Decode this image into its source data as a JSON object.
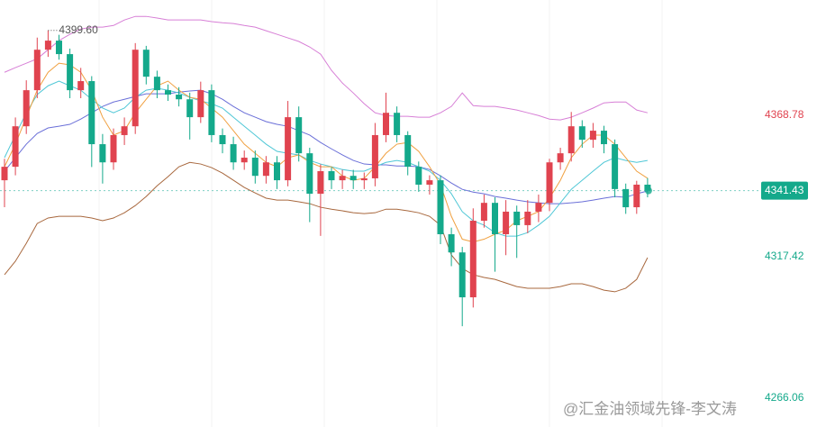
{
  "chart_data": {
    "type": "candlestick",
    "ylim": [
      4255.61,
      4410.65
    ],
    "yticks": [
      4368.78,
      4317.42,
      4266.06
    ],
    "up_color": "#e0434f",
    "down_color": "#14a98b",
    "last_price": 4341.43,
    "max_annotation": {
      "value": 4399.6,
      "label": "4399.60"
    },
    "watermark": "@汇金油领域先锋-李文涛",
    "open": [
      4345.2,
      4350.1,
      4364.8,
      4377.9,
      4392.6,
      4395.9,
      4391.0,
      4377.9,
      4381.2,
      4358.3,
      4351.7,
      4361.6,
      4364.8,
      4392.6,
      4382.8,
      4377.9,
      4376.3,
      4374.6,
      4368.1,
      4377.9,
      4361.6,
      4358.3,
      4351.7,
      4353.4,
      4346.8,
      4351.7,
      4345.2,
      4368.1,
      4355.0,
      4340.3,
      4348.5,
      4345.2,
      4346.8,
      4345.2,
      4345.9,
      4361.6,
      4369.7,
      4361.6,
      4350.1,
      4343.6,
      4345.2,
      4325.6,
      4319.0,
      4302.7,
      4330.5,
      4337.0,
      4325.6,
      4333.8,
      4328.9,
      4333.8,
      4337.0,
      4351.7,
      4355.0,
      4364.8,
      4359.9,
      4363.2,
      4358.3,
      4342.0,
      4335.4,
      4343.6
    ],
    "high": [
      4353.0,
      4368.0,
      4381.5,
      4397.0,
      4399.6,
      4398.0,
      4393.0,
      4386.0,
      4383.0,
      4362.0,
      4364.0,
      4368.0,
      4395.0,
      4394.0,
      4385.0,
      4380.0,
      4379.0,
      4377.0,
      4381.0,
      4380.0,
      4364.0,
      4361.0,
      4356.0,
      4356.0,
      4354.0,
      4354.0,
      4374.0,
      4372.0,
      4357.0,
      4351.0,
      4350.0,
      4349.0,
      4349.0,
      4348.0,
      4366.0,
      4377.0,
      4372.0,
      4363.0,
      4352.0,
      4347.0,
      4347.0,
      4328.0,
      4321.0,
      4335.0,
      4340.0,
      4339.0,
      4338.0,
      4336.0,
      4338.0,
      4340.0,
      4353.0,
      4357.0,
      4370.0,
      4367.0,
      4366.0,
      4365.0,
      4360.0,
      4344.0,
      4345.0,
      4346.0
    ],
    "low": [
      4335.4,
      4347.0,
      4362.0,
      4375.0,
      4390.0,
      4389.0,
      4375.0,
      4375.0,
      4350.0,
      4344.0,
      4349.0,
      4358.0,
      4362.0,
      4380.0,
      4375.0,
      4374.0,
      4372.0,
      4360.0,
      4366.0,
      4359.0,
      4355.0,
      4349.0,
      4349.0,
      4344.0,
      4344.0,
      4342.0,
      4343.0,
      4352.0,
      4330.0,
      4325.0,
      4342.0,
      4342.0,
      4342.0,
      4342.0,
      4343.0,
      4359.0,
      4359.0,
      4347.0,
      4341.0,
      4340.0,
      4322.0,
      4314.0,
      4292.2,
      4299.0,
      4328.0,
      4312.0,
      4318.0,
      4317.0,
      4326.0,
      4330.0,
      4334.0,
      4349.0,
      4352.0,
      4357.0,
      4357.0,
      4355.0,
      4339.0,
      4333.0,
      4333.0,
      4339.0
    ],
    "close": [
      4350.1,
      4364.8,
      4377.9,
      4392.6,
      4395.9,
      4391.0,
      4377.9,
      4381.2,
      4358.3,
      4351.7,
      4361.6,
      4364.8,
      4392.6,
      4382.8,
      4377.9,
      4376.3,
      4374.6,
      4368.1,
      4377.9,
      4361.6,
      4358.3,
      4351.7,
      4353.4,
      4346.8,
      4351.7,
      4345.2,
      4368.1,
      4355.0,
      4340.3,
      4348.5,
      4345.2,
      4346.8,
      4345.2,
      4345.9,
      4361.6,
      4369.7,
      4361.6,
      4350.1,
      4343.6,
      4345.2,
      4325.6,
      4319.0,
      4302.7,
      4330.5,
      4337.0,
      4325.6,
      4333.8,
      4328.9,
      4333.8,
      4337.0,
      4351.7,
      4355.0,
      4364.8,
      4359.9,
      4363.2,
      4358.3,
      4342.0,
      4335.4,
      4343.6,
      4341.43
    ],
    "lines": [
      {
        "color": "#d77fd6",
        "values": [
          4384.4,
          4386.1,
          4387.7,
          4389.3,
          4392.6,
          4395.9,
          4398.2,
          4400.1,
          4400.8,
          4400.8,
          4401.4,
          4403.4,
          4404.7,
          4404.7,
          4404.1,
          4403.4,
          4403.4,
          4403.4,
          4403.4,
          4402.8,
          4402.4,
          4402.1,
          4401.4,
          4400.8,
          4399.5,
          4398.2,
          4396.9,
          4395.6,
          4393.6,
          4391.0,
          4385.1,
          4380.5,
          4376.9,
          4373.0,
          4369.7,
          4368.7,
          4368.4,
          4368.4,
          4368.1,
          4368.1,
          4369.7,
          4372.0,
          4376.9,
          4372.3,
          4372.0,
          4372.0,
          4371.4,
          4370.7,
          4369.7,
          4368.7,
          4367.4,
          4367.1,
          4368.1,
          4369.7,
          4371.4,
          4373.3,
          4373.6,
          4373.6,
          4370.7,
          4369.7
        ]
      },
      {
        "color": "#a8683e",
        "values": [
          4310.9,
          4315.8,
          4322.3,
          4329.5,
          4331.5,
          4332.1,
          4332.1,
          4332.1,
          4331.5,
          4330.5,
          4331.5,
          4333.4,
          4336.0,
          4339.3,
          4343.2,
          4346.5,
          4350.1,
          4351.7,
          4351.1,
          4349.8,
          4347.8,
          4345.2,
          4342.6,
          4340.6,
          4338.7,
          4338.0,
          4338.0,
          4337.4,
          4336.7,
          4335.4,
          4334.7,
          4334.1,
          4333.4,
          4333.1,
          4333.4,
          4334.7,
          4334.7,
          4334.1,
          4333.4,
          4332.1,
          4328.9,
          4318.1,
          4313.2,
          4310.9,
          4309.9,
          4309.2,
          4307.9,
          4306.6,
          4306.0,
          4306.0,
          4306.0,
          4306.6,
          4307.6,
          4307.6,
          4306.6,
          4305.3,
          4304.7,
          4306.0,
          4309.2,
          4317.1
        ]
      },
      {
        "color": "#6a6fd8",
        "values": [
          4348.5,
          4353.4,
          4358.3,
          4362.2,
          4364.2,
          4364.8,
          4365.5,
          4367.4,
          4369.7,
          4372.0,
          4373.6,
          4374.6,
          4375.6,
          4376.6,
          4376.6,
          4376.6,
          4377.2,
          4377.6,
          4377.9,
          4376.6,
          4374.6,
          4372.0,
          4369.7,
          4368.1,
          4366.5,
          4365.5,
          4364.8,
          4363.2,
          4361.6,
          4358.9,
          4356.6,
          4354.4,
          4352.4,
          4351.1,
          4350.8,
          4350.8,
          4350.4,
          4350.4,
          4350.1,
          4349.1,
          4346.8,
          4344.2,
          4341.9,
          4340.9,
          4340.3,
          4339.3,
          4338.7,
          4338.0,
          4337.4,
          4337.0,
          4336.7,
          4336.7,
          4337.0,
          4337.4,
          4338.0,
          4338.7,
          4339.3,
          4339.0,
          4340.3,
          4341.3
        ]
      },
      {
        "color": "#4fc7d6",
        "values": [
          4353.4,
          4361.6,
          4369.7,
          4376.3,
          4379.5,
          4381.2,
          4379.5,
          4377.9,
          4374.6,
          4371.4,
          4369.7,
          4371.4,
          4375.3,
          4377.9,
          4378.6,
          4377.9,
          4376.9,
          4375.3,
          4374.0,
          4373.0,
          4371.4,
          4368.1,
          4364.8,
          4361.6,
          4358.3,
          4355.7,
          4355.0,
          4354.4,
          4352.4,
          4351.1,
          4350.1,
          4349.1,
          4348.5,
          4348.5,
          4350.1,
          4351.7,
          4352.4,
          4351.7,
          4350.1,
          4348.5,
          4345.2,
          4340.3,
          4333.8,
          4330.5,
          4328.9,
          4326.2,
          4324.9,
          4324.9,
          4326.2,
          4328.9,
          4332.1,
          4337.0,
          4341.9,
          4345.2,
          4348.5,
          4351.7,
          4353.4,
          4352.4,
          4351.7,
          4352.4
        ]
      },
      {
        "color": "#f0a040",
        "values": [
          4350.1,
          4358.3,
          4368.1,
          4377.9,
          4384.4,
          4387.7,
          4387.1,
          4384.4,
          4377.9,
          4368.1,
          4361.6,
          4363.2,
          4369.7,
          4374.6,
          4379.5,
          4381.2,
          4377.9,
          4375.3,
          4374.6,
          4371.4,
          4368.1,
          4363.2,
          4358.3,
          4355.0,
          4351.7,
          4350.1,
          4353.4,
          4354.4,
          4351.7,
          4350.1,
          4350.1,
          4346.8,
          4345.2,
          4345.9,
          4350.1,
          4355.0,
          4358.3,
          4358.9,
          4355.7,
          4350.1,
          4343.6,
          4332.1,
          4323.8,
          4322.8,
          4323.8,
          4325.6,
          4327.1,
          4330.5,
          4332.1,
          4333.8,
          4338.7,
          4345.2,
          4353.4,
          4358.3,
          4361.6,
          4361.6,
          4358.3,
          4353.4,
          4348.5,
          4345.9
        ]
      }
    ]
  }
}
